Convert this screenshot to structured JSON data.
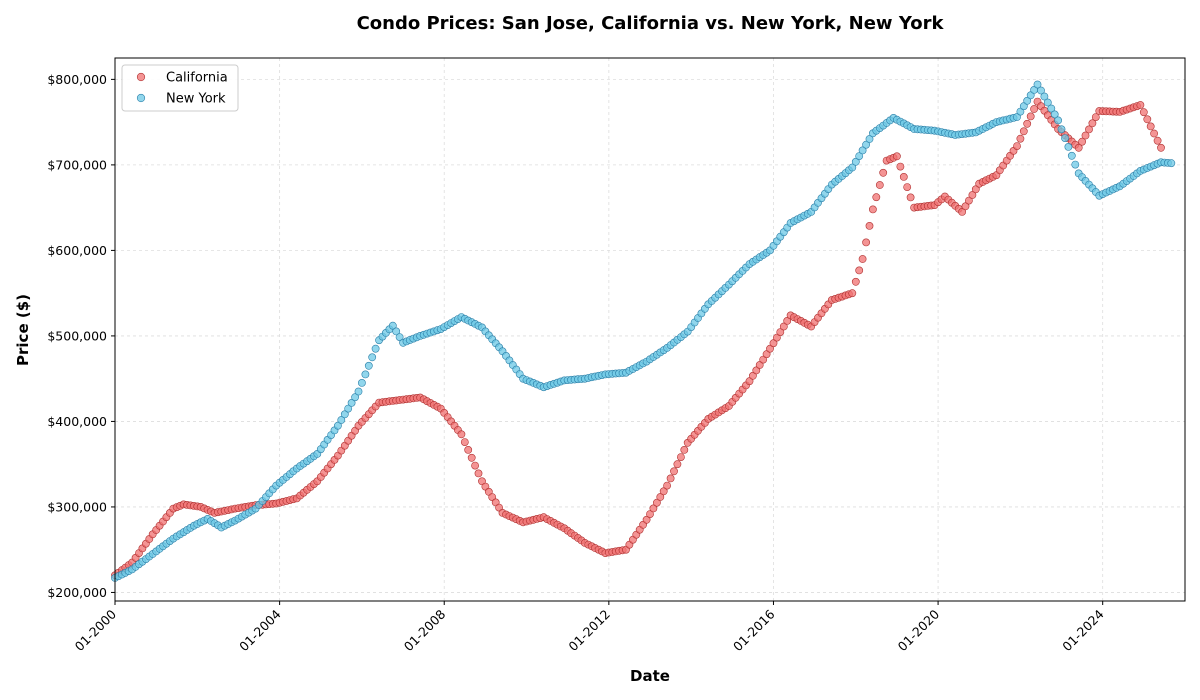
{
  "chart_data": {
    "type": "scatter",
    "title": "Condo Prices: San Jose, California vs. New York, New York",
    "xlabel": "Date",
    "ylabel": "Price ($)",
    "xlim": [
      "2000-01",
      "2026-01"
    ],
    "ylim": [
      190000,
      825000
    ],
    "x_ticks": [
      "01-2000",
      "01-2004",
      "01-2008",
      "01-2012",
      "01-2016",
      "01-2020",
      "01-2024"
    ],
    "y_ticks": [
      200000,
      300000,
      400000,
      500000,
      600000,
      700000,
      800000
    ],
    "y_tick_labels": [
      "$200,000",
      "$300,000",
      "$400,000",
      "$500,000",
      "$600,000",
      "$700,000",
      "$800,000"
    ],
    "grid": true,
    "legend_position": "top-left",
    "series": [
      {
        "name": "California",
        "color": "#f07070",
        "edge_color": "#b03030",
        "points": [
          [
            "2000-01",
            220000
          ],
          [
            "2000-06",
            235000
          ],
          [
            "2000-12",
            268000
          ],
          [
            "2001-06",
            298000
          ],
          [
            "2001-09",
            303000
          ],
          [
            "2002-02",
            300000
          ],
          [
            "2002-06",
            293000
          ],
          [
            "2002-12",
            298000
          ],
          [
            "2003-06",
            302000
          ],
          [
            "2003-12",
            304000
          ],
          [
            "2004-06",
            310000
          ],
          [
            "2004-12",
            330000
          ],
          [
            "2005-06",
            360000
          ],
          [
            "2005-12",
            395000
          ],
          [
            "2006-06",
            422000
          ],
          [
            "2006-12",
            425000
          ],
          [
            "2007-06",
            428000
          ],
          [
            "2007-12",
            415000
          ],
          [
            "2008-06",
            385000
          ],
          [
            "2008-12",
            330000
          ],
          [
            "2009-06",
            293000
          ],
          [
            "2009-12",
            282000
          ],
          [
            "2010-06",
            288000
          ],
          [
            "2010-12",
            275000
          ],
          [
            "2011-06",
            258000
          ],
          [
            "2011-12",
            246000
          ],
          [
            "2012-06",
            250000
          ],
          [
            "2012-12",
            285000
          ],
          [
            "2013-06",
            325000
          ],
          [
            "2013-12",
            375000
          ],
          [
            "2014-06",
            403000
          ],
          [
            "2014-12",
            418000
          ],
          [
            "2015-06",
            447000
          ],
          [
            "2015-12",
            485000
          ],
          [
            "2016-06",
            524000
          ],
          [
            "2016-12",
            511000
          ],
          [
            "2017-06",
            542000
          ],
          [
            "2017-12",
            550000
          ],
          [
            "2018-03",
            590000
          ],
          [
            "2018-06",
            648000
          ],
          [
            "2018-10",
            705000
          ],
          [
            "2019-01",
            710000
          ],
          [
            "2019-06",
            650000
          ],
          [
            "2019-12",
            653000
          ],
          [
            "2020-03",
            663000
          ],
          [
            "2020-08",
            645000
          ],
          [
            "2021-01",
            678000
          ],
          [
            "2021-06",
            688000
          ],
          [
            "2021-12",
            722000
          ],
          [
            "2022-06",
            774000
          ],
          [
            "2022-12",
            742000
          ],
          [
            "2023-06",
            720000
          ],
          [
            "2023-12",
            763000
          ],
          [
            "2024-06",
            762000
          ],
          [
            "2024-12",
            770000
          ],
          [
            "2025-06",
            720000
          ]
        ]
      },
      {
        "name": "New York",
        "color": "#6cc8e6",
        "edge_color": "#2a7fa8",
        "points": [
          [
            "2000-01",
            217000
          ],
          [
            "2000-06",
            227000
          ],
          [
            "2000-12",
            245000
          ],
          [
            "2001-06",
            263000
          ],
          [
            "2001-12",
            278000
          ],
          [
            "2002-04",
            286000
          ],
          [
            "2002-08",
            276000
          ],
          [
            "2002-12",
            284000
          ],
          [
            "2003-06",
            298000
          ],
          [
            "2003-12",
            325000
          ],
          [
            "2004-06",
            345000
          ],
          [
            "2004-12",
            362000
          ],
          [
            "2005-06",
            395000
          ],
          [
            "2005-12",
            435000
          ],
          [
            "2006-06",
            495000
          ],
          [
            "2006-10",
            512000
          ],
          [
            "2007-01",
            492000
          ],
          [
            "2007-06",
            500000
          ],
          [
            "2007-12",
            508000
          ],
          [
            "2008-06",
            522000
          ],
          [
            "2008-12",
            510000
          ],
          [
            "2009-06",
            482000
          ],
          [
            "2009-12",
            450000
          ],
          [
            "2010-06",
            440000
          ],
          [
            "2010-12",
            448000
          ],
          [
            "2011-06",
            450000
          ],
          [
            "2011-12",
            455000
          ],
          [
            "2012-06",
            457000
          ],
          [
            "2012-12",
            470000
          ],
          [
            "2013-06",
            486000
          ],
          [
            "2013-12",
            505000
          ],
          [
            "2014-06",
            537000
          ],
          [
            "2014-12",
            560000
          ],
          [
            "2015-06",
            584000
          ],
          [
            "2015-12",
            600000
          ],
          [
            "2016-06",
            632000
          ],
          [
            "2016-12",
            645000
          ],
          [
            "2017-06",
            677000
          ],
          [
            "2017-12",
            697000
          ],
          [
            "2018-06",
            737000
          ],
          [
            "2018-12",
            755000
          ],
          [
            "2019-06",
            742000
          ],
          [
            "2019-12",
            740000
          ],
          [
            "2020-06",
            735000
          ],
          [
            "2020-12",
            738000
          ],
          [
            "2021-06",
            750000
          ],
          [
            "2021-12",
            756000
          ],
          [
            "2022-06",
            794000
          ],
          [
            "2022-12",
            752000
          ],
          [
            "2023-06",
            690000
          ],
          [
            "2023-12",
            664000
          ],
          [
            "2024-06",
            675000
          ],
          [
            "2024-12",
            693000
          ],
          [
            "2025-06",
            703000
          ],
          [
            "2025-09",
            702000
          ]
        ]
      }
    ]
  }
}
